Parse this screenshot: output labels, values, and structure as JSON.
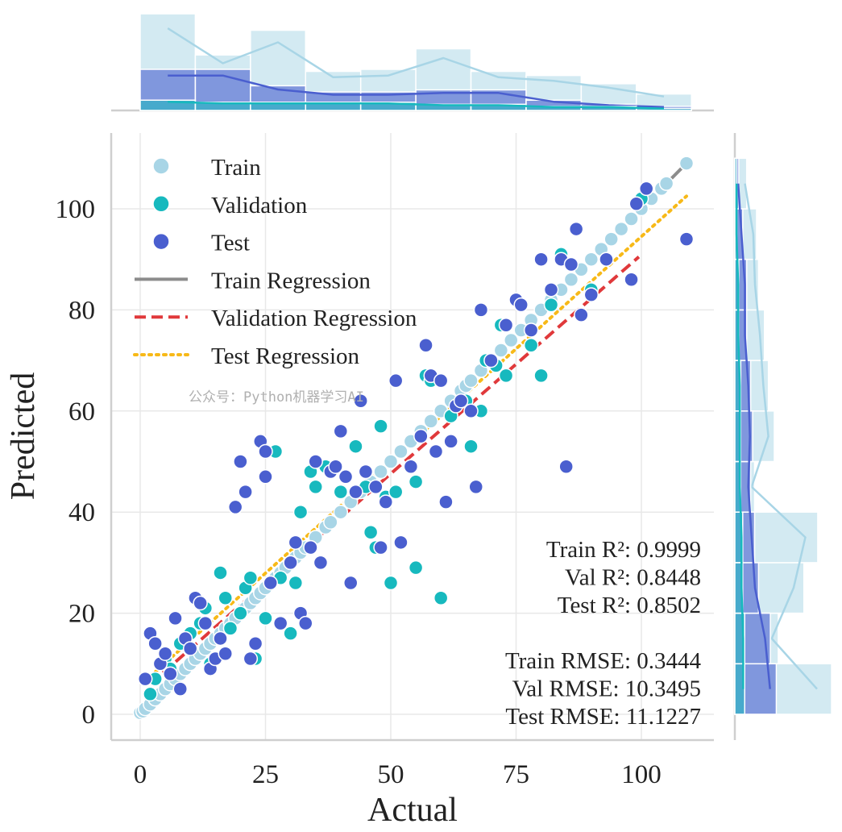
{
  "chart_data": {
    "type": "scatter",
    "xlabel": "Actual",
    "ylabel": "Predicted",
    "xlim": [
      -5,
      115
    ],
    "ylim": [
      -5,
      112
    ],
    "xticks": [
      0,
      25,
      50,
      75,
      100
    ],
    "yticks": [
      0,
      20,
      40,
      60,
      80,
      100
    ],
    "grid": true,
    "legend_position": "top-left",
    "colors": {
      "train": "#a8d5e6",
      "validation": "#17b9be",
      "test": "#4a5fcf",
      "train_regression": "#8c8c8c",
      "validation_regression": "#e0393b",
      "test_regression": "#f7b918",
      "grid": "#e8e8e8",
      "axis": "#cfcfcf"
    },
    "legend": [
      {
        "label": "Train",
        "kind": "marker",
        "color": "#a8d5e6"
      },
      {
        "label": "Validation",
        "kind": "marker",
        "color": "#17b9be"
      },
      {
        "label": "Test",
        "kind": "marker",
        "color": "#4a5fcf"
      },
      {
        "label": "Train Regression",
        "kind": "solid",
        "color": "#8c8c8c"
      },
      {
        "label": "Validation Regression",
        "kind": "dashed",
        "color": "#e0393b"
      },
      {
        "label": "Test Regression",
        "kind": "dotted",
        "color": "#f7b918"
      }
    ],
    "regression_lines": [
      {
        "name": "Train Regression",
        "x": [
          0,
          109
        ],
        "y": [
          0,
          109
        ]
      },
      {
        "name": "Validation Regression",
        "x": [
          2,
          99.5
        ],
        "y": [
          6,
          90.5
        ]
      },
      {
        "name": "Test Regression",
        "x": [
          2,
          109
        ],
        "y": [
          7.5,
          102.5
        ]
      }
    ],
    "stats": {
      "r2": [
        "Train R²: 0.9999",
        "Val R²: 0.8448",
        "Test R²: 0.8502"
      ],
      "rmse": [
        "Train RMSE: 0.3444",
        "Val RMSE: 10.3495",
        "Test RMSE: 11.1227"
      ]
    },
    "series": [
      {
        "name": "Train",
        "points": [
          [
            0,
            0.3
          ],
          [
            0.5,
            0.6
          ],
          [
            1,
            1.1
          ],
          [
            2,
            2
          ],
          [
            3,
            3
          ],
          [
            4,
            4
          ],
          [
            5,
            5
          ],
          [
            6,
            6
          ],
          [
            7,
            7
          ],
          [
            8,
            8
          ],
          [
            9,
            9
          ],
          [
            10,
            10
          ],
          [
            11,
            11
          ],
          [
            12,
            12
          ],
          [
            13,
            13
          ],
          [
            14,
            14
          ],
          [
            15,
            15
          ],
          [
            16,
            16
          ],
          [
            17,
            17
          ],
          [
            18,
            18
          ],
          [
            19,
            19
          ],
          [
            20,
            20
          ],
          [
            21,
            21
          ],
          [
            22,
            22
          ],
          [
            23,
            23
          ],
          [
            24,
            24
          ],
          [
            25,
            25
          ],
          [
            26,
            26
          ],
          [
            27,
            27
          ],
          [
            28,
            28
          ],
          [
            29,
            29
          ],
          [
            30,
            30
          ],
          [
            31,
            31
          ],
          [
            32,
            32
          ],
          [
            33,
            33
          ],
          [
            35,
            35
          ],
          [
            37,
            37
          ],
          [
            38,
            38
          ],
          [
            40,
            40
          ],
          [
            42,
            42
          ],
          [
            44,
            44
          ],
          [
            45,
            45
          ],
          [
            46,
            46
          ],
          [
            48,
            48
          ],
          [
            50,
            50
          ],
          [
            52,
            52
          ],
          [
            54,
            54
          ],
          [
            56,
            56
          ],
          [
            58,
            58
          ],
          [
            60,
            60
          ],
          [
            62,
            62
          ],
          [
            64,
            64
          ],
          [
            65,
            65
          ],
          [
            66,
            66
          ],
          [
            68,
            68
          ],
          [
            70,
            70
          ],
          [
            72,
            72
          ],
          [
            74,
            74
          ],
          [
            76,
            76
          ],
          [
            78,
            78
          ],
          [
            80,
            80
          ],
          [
            82,
            82
          ],
          [
            84,
            84
          ],
          [
            86,
            86
          ],
          [
            88,
            88
          ],
          [
            90,
            90
          ],
          [
            92,
            92
          ],
          [
            94,
            94
          ],
          [
            96,
            96
          ],
          [
            98,
            98
          ],
          [
            100,
            100
          ],
          [
            102,
            102
          ],
          [
            104,
            104
          ],
          [
            105,
            105
          ],
          [
            109,
            109
          ]
        ]
      },
      {
        "name": "Validation",
        "points": [
          [
            2,
            4
          ],
          [
            3,
            7
          ],
          [
            4,
            10
          ],
          [
            5,
            11
          ],
          [
            6,
            9
          ],
          [
            8,
            14
          ],
          [
            10,
            16
          ],
          [
            12,
            18
          ],
          [
            13,
            21
          ],
          [
            14,
            10
          ],
          [
            16,
            28
          ],
          [
            17,
            23
          ],
          [
            18,
            17
          ],
          [
            20,
            20
          ],
          [
            21,
            25
          ],
          [
            22,
            27
          ],
          [
            23,
            11
          ],
          [
            25,
            19
          ],
          [
            27,
            52
          ],
          [
            28,
            27
          ],
          [
            30,
            16
          ],
          [
            31,
            26
          ],
          [
            32,
            40
          ],
          [
            34,
            48
          ],
          [
            35,
            45
          ],
          [
            37,
            49
          ],
          [
            40,
            44
          ],
          [
            41,
            47
          ],
          [
            43,
            53
          ],
          [
            45,
            45
          ],
          [
            46,
            36
          ],
          [
            47,
            33
          ],
          [
            48,
            57
          ],
          [
            49,
            43
          ],
          [
            50,
            26
          ],
          [
            51,
            44
          ],
          [
            55,
            29
          ],
          [
            55,
            46
          ],
          [
            57,
            67
          ],
          [
            58,
            66
          ],
          [
            60,
            23
          ],
          [
            62,
            59
          ],
          [
            65,
            62
          ],
          [
            66,
            53
          ],
          [
            68,
            60
          ],
          [
            69,
            70
          ],
          [
            71,
            69
          ],
          [
            72,
            77
          ],
          [
            73,
            67
          ],
          [
            78,
            73
          ],
          [
            80,
            67
          ],
          [
            82,
            81
          ],
          [
            84,
            91
          ],
          [
            90,
            84
          ],
          [
            100,
            102
          ]
        ]
      },
      {
        "name": "Test",
        "points": [
          [
            1,
            7
          ],
          [
            2,
            16
          ],
          [
            3,
            14
          ],
          [
            4,
            10
          ],
          [
            5,
            12
          ],
          [
            6,
            8
          ],
          [
            7,
            19
          ],
          [
            8,
            5
          ],
          [
            9,
            15
          ],
          [
            10,
            13
          ],
          [
            11,
            23
          ],
          [
            12,
            22
          ],
          [
            13,
            18
          ],
          [
            14,
            9
          ],
          [
            15,
            11
          ],
          [
            16,
            15
          ],
          [
            17,
            12
          ],
          [
            19,
            41
          ],
          [
            20,
            50
          ],
          [
            21,
            44
          ],
          [
            22,
            11
          ],
          [
            23,
            14
          ],
          [
            24,
            54
          ],
          [
            25,
            52
          ],
          [
            25,
            47
          ],
          [
            26,
            26
          ],
          [
            28,
            18
          ],
          [
            30,
            30
          ],
          [
            31,
            34
          ],
          [
            32,
            20
          ],
          [
            33,
            18
          ],
          [
            34,
            33
          ],
          [
            35,
            50
          ],
          [
            36,
            30
          ],
          [
            38,
            48
          ],
          [
            39,
            49
          ],
          [
            40,
            56
          ],
          [
            41,
            47
          ],
          [
            42,
            26
          ],
          [
            43,
            44
          ],
          [
            44,
            62
          ],
          [
            45,
            48
          ],
          [
            47,
            45
          ],
          [
            48,
            33
          ],
          [
            49,
            42
          ],
          [
            51,
            66
          ],
          [
            52,
            34
          ],
          [
            54,
            49
          ],
          [
            56,
            55
          ],
          [
            57,
            73
          ],
          [
            58,
            67
          ],
          [
            59,
            52
          ],
          [
            60,
            66
          ],
          [
            61,
            42
          ],
          [
            62,
            54
          ],
          [
            63,
            61
          ],
          [
            64,
            62
          ],
          [
            66,
            60
          ],
          [
            67,
            45
          ],
          [
            68,
            80
          ],
          [
            70,
            70
          ],
          [
            73,
            77
          ],
          [
            75,
            82
          ],
          [
            76,
            81
          ],
          [
            78,
            76
          ],
          [
            80,
            90
          ],
          [
            82,
            84
          ],
          [
            84,
            90
          ],
          [
            85,
            49
          ],
          [
            86,
            89
          ],
          [
            87,
            96
          ],
          [
            88,
            79
          ],
          [
            90,
            83
          ],
          [
            93,
            90
          ],
          [
            98,
            86
          ],
          [
            99,
            101
          ],
          [
            101,
            104
          ],
          [
            109,
            94
          ]
        ]
      }
    ],
    "top_histogram": {
      "bins": [
        [
          0,
          11
        ],
        [
          11,
          22
        ],
        [
          22,
          33
        ],
        [
          33,
          44
        ],
        [
          44,
          55
        ],
        [
          55,
          66
        ],
        [
          66,
          77
        ],
        [
          77,
          88
        ],
        [
          88,
          99
        ],
        [
          99,
          110
        ]
      ],
      "train_counts": [
        47,
        27,
        39,
        19,
        20,
        30,
        19,
        17,
        13,
        8
      ],
      "test_counts": [
        20,
        20,
        12,
        9,
        9,
        10,
        10,
        5,
        3,
        2
      ],
      "validation_counts": [
        5,
        4,
        4,
        4,
        4,
        3,
        3,
        2,
        2,
        1
      ]
    },
    "right_histogram": {
      "bins": [
        [
          0,
          10
        ],
        [
          10,
          20
        ],
        [
          20,
          30
        ],
        [
          30,
          40
        ],
        [
          40,
          50
        ],
        [
          50,
          60
        ],
        [
          60,
          70
        ],
        [
          70,
          80
        ],
        [
          80,
          90
        ],
        [
          90,
          100
        ],
        [
          100,
          110
        ]
      ],
      "train_counts": [
        49,
        22,
        35,
        42,
        10,
        20,
        17,
        15,
        12,
        11,
        6
      ],
      "test_counts": [
        21,
        18,
        12,
        10,
        8,
        9,
        8,
        6,
        6,
        4,
        2
      ],
      "validation_counts": [
        5,
        5,
        4,
        4,
        3,
        3,
        3,
        2,
        2,
        1,
        1
      ]
    }
  },
  "watermark": "公众号：Python机器学习AI"
}
